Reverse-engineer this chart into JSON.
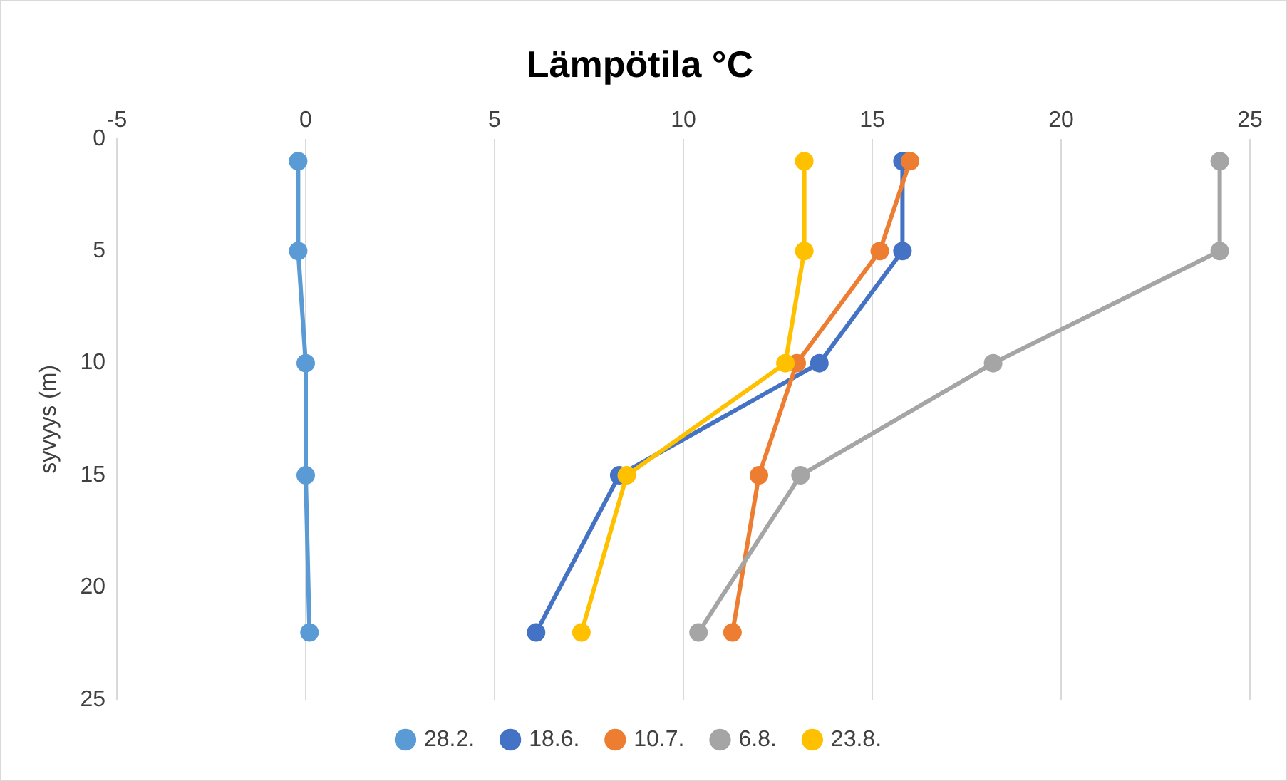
{
  "chart_data": {
    "type": "line",
    "title": "Lämpötila °C",
    "ylabel": "syvyys (m)",
    "xlim": [
      -5,
      25
    ],
    "xticks": [
      -5,
      0,
      5,
      10,
      15,
      20,
      25
    ],
    "ylim": [
      25,
      0
    ],
    "yticks": [
      0,
      5,
      10,
      15,
      20,
      25
    ],
    "grid": "x",
    "legend": "bottom",
    "marker": "circle",
    "line_style": "solid",
    "series": [
      {
        "name": "28.2.",
        "color": "#5b9bd5",
        "x": [
          -0.2,
          -0.2,
          0,
          0,
          0.1
        ],
        "values": [
          1,
          5,
          10,
          15,
          22
        ]
      },
      {
        "name": "18.6.",
        "color": "#4472c4",
        "x": [
          15.8,
          15.8,
          13.6,
          8.3,
          6.1
        ],
        "values": [
          1,
          5,
          10,
          15,
          22
        ]
      },
      {
        "name": "10.7.",
        "color": "#ed7d31",
        "x": [
          16,
          15.2,
          13,
          12,
          11.3
        ],
        "values": [
          1,
          5,
          10,
          15,
          22
        ]
      },
      {
        "name": "6.8.",
        "color": "#a5a5a5",
        "x": [
          24.2,
          24.2,
          18.2,
          13.1,
          10.4
        ],
        "values": [
          1,
          5,
          10,
          15,
          22
        ]
      },
      {
        "name": "23.8.",
        "color": "#ffc000",
        "x": [
          13.2,
          13.2,
          12.7,
          8.5,
          7.3
        ],
        "values": [
          1,
          5,
          10,
          15,
          22
        ]
      }
    ]
  }
}
